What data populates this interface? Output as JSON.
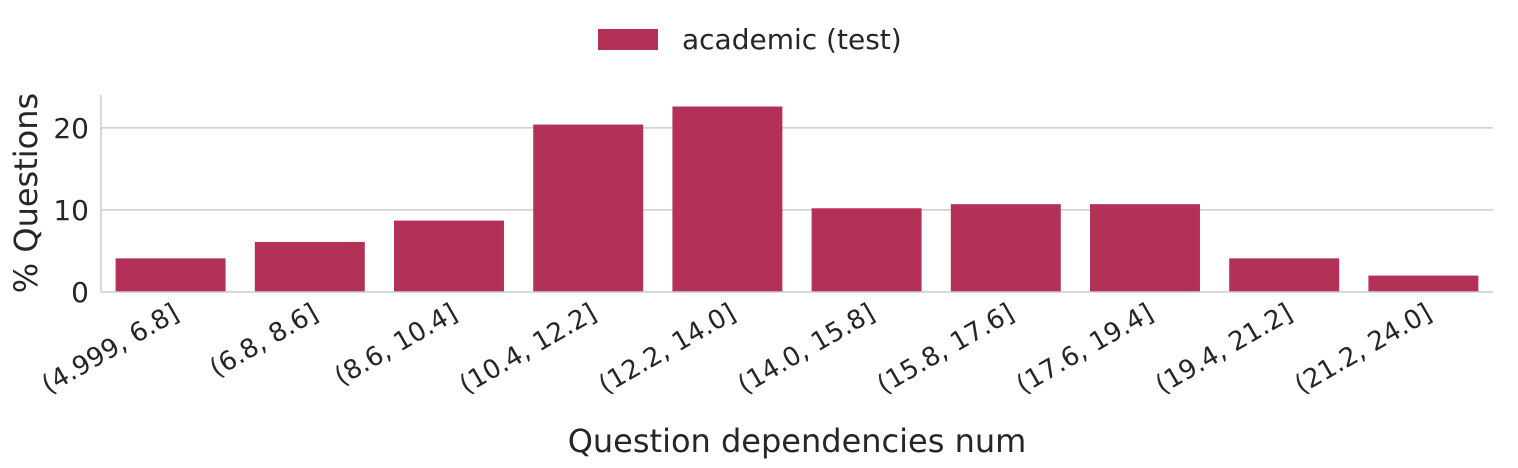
{
  "chart_data": {
    "type": "bar",
    "categories": [
      "(4.999, 6.8]",
      "(6.8, 8.6]",
      "(8.6, 10.4]",
      "(10.4, 12.2]",
      "(12.2, 14.0]",
      "(14.0, 15.8]",
      "(15.8, 17.6]",
      "(17.6, 19.4]",
      "(19.4, 21.2]",
      "(21.2, 24.0]"
    ],
    "series": [
      {
        "name": "academic (test)",
        "values": [
          4.1,
          6.1,
          8.7,
          20.4,
          22.6,
          10.2,
          10.7,
          10.7,
          4.1,
          2.0
        ],
        "color": "#b33057"
      }
    ],
    "xlabel": "Question dependencies num",
    "ylabel": "% Questions",
    "ylim": [
      0,
      24
    ],
    "yticks": [
      0,
      10,
      20
    ],
    "grid": "horizontal",
    "legend": "top-center"
  }
}
